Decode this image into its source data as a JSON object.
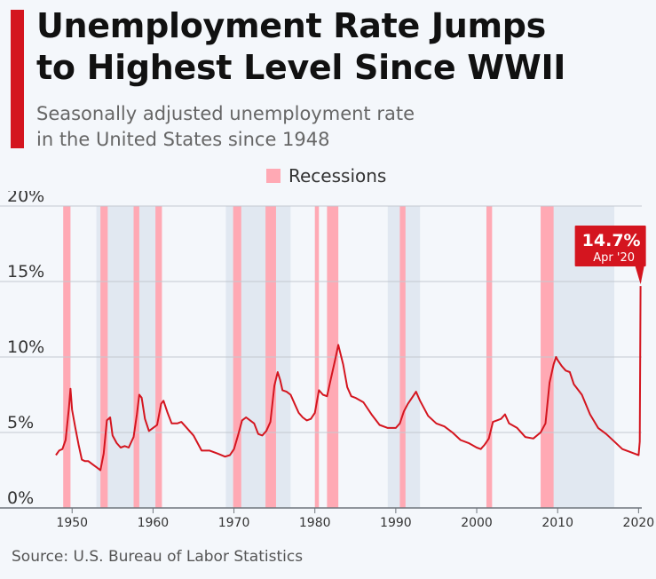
{
  "header": {
    "title_line1": "Unemployment Rate Jumps",
    "title_line2": "to Highest Level Since WWII",
    "subtitle_line1": "Seasonally adjusted unemployment rate",
    "subtitle_line2": "in the United States since 1948"
  },
  "legend": {
    "recessions_label": "Recessions"
  },
  "source": "Source: U.S. Bureau of Labor Statistics",
  "colors": {
    "accent": "#d4151f",
    "line": "#d4151f",
    "recession": "#ffa9b4",
    "presidency_band": "#e1e8f1",
    "background": "#f4f7fb",
    "grid": "#c4c9d0"
  },
  "chart_data": {
    "type": "line",
    "title": "Unemployment Rate Jumps to Highest Level Since WWII",
    "subtitle": "Seasonally adjusted unemployment rate in the United States since 1948",
    "ylim": [
      0,
      20
    ],
    "yticks": [
      0,
      5,
      10,
      15,
      20
    ],
    "ytick_labels": [
      "0%",
      "5%",
      "10%",
      "15%",
      "20%"
    ],
    "xlim": [
      1948,
      2020.4
    ],
    "xticks": [
      1950,
      1960,
      1970,
      1980,
      1990,
      2000,
      2010,
      2020
    ],
    "xtick_labels": [
      "1950",
      "1960",
      "1970",
      "1980",
      "1990",
      "2000",
      "2010",
      "2020"
    ],
    "grid": true,
    "legend_position": "top-center",
    "annotation": {
      "value": "14.7%",
      "date": "Apr '20",
      "x": 2020.25,
      "y": 14.7
    },
    "recessions": [
      [
        1948.9,
        1949.8
      ],
      [
        1953.5,
        1954.4
      ],
      [
        1957.6,
        1958.3
      ],
      [
        1960.3,
        1961.1
      ],
      [
        1969.9,
        1970.9
      ],
      [
        1973.9,
        1975.2
      ],
      [
        1980.0,
        1980.5
      ],
      [
        1981.5,
        1982.9
      ],
      [
        1990.5,
        1991.2
      ],
      [
        2001.2,
        2001.9
      ],
      [
        2007.9,
        2009.5
      ]
    ],
    "shaded_periods": [
      [
        1953.0,
        1961.0
      ],
      [
        1969.0,
        1977.0
      ],
      [
        1989.0,
        1993.0
      ],
      [
        2009.0,
        2017.0
      ]
    ],
    "series": [
      {
        "x": [
          1948.0,
          1948.4,
          1948.8,
          1949.2,
          1949.6,
          1949.8,
          1950.0,
          1950.4,
          1950.8,
          1951.2,
          1951.6,
          1952.0,
          1952.5,
          1953.0,
          1953.5,
          1953.9,
          1954.3,
          1954.7,
          1955.0,
          1955.5,
          1956.0,
          1956.5,
          1957.0,
          1957.6,
          1958.0,
          1958.3,
          1958.6,
          1959.0,
          1959.5,
          1960.0,
          1960.5,
          1961.0,
          1961.3,
          1961.8,
          1962.3,
          1963.0,
          1963.5,
          1964.0,
          1965.0,
          1966.0,
          1967.0,
          1968.0,
          1968.9,
          1969.5,
          1970.0,
          1970.5,
          1971.0,
          1971.5,
          1972.0,
          1972.5,
          1973.0,
          1973.5,
          1974.0,
          1974.5,
          1975.0,
          1975.4,
          1975.7,
          1976.0,
          1976.5,
          1977.0,
          1977.5,
          1978.0,
          1978.5,
          1979.0,
          1979.5,
          1980.0,
          1980.5,
          1981.0,
          1981.5,
          1982.0,
          1982.5,
          1982.9,
          1983.5,
          1984.0,
          1984.5,
          1985.0,
          1986.0,
          1987.0,
          1988.0,
          1989.0,
          1990.0,
          1990.5,
          1991.0,
          1991.5,
          1992.0,
          1992.5,
          1993.0,
          1994.0,
          1995.0,
          1996.0,
          1997.0,
          1998.0,
          1999.0,
          2000.0,
          2000.5,
          2001.0,
          2001.5,
          2002.0,
          2002.5,
          2003.0,
          2003.5,
          2004.0,
          2005.0,
          2006.0,
          2007.0,
          2007.9,
          2008.5,
          2009.0,
          2009.5,
          2009.8,
          2010.0,
          2010.5,
          2011.0,
          2011.5,
          2012.0,
          2013.0,
          2014.0,
          2015.0,
          2016.0,
          2017.0,
          2018.0,
          2019.0,
          2019.5,
          2020.0,
          2020.15,
          2020.25
        ],
        "values": [
          3.5,
          3.8,
          3.9,
          4.5,
          6.6,
          7.9,
          6.5,
          5.3,
          4.2,
          3.2,
          3.1,
          3.1,
          2.9,
          2.7,
          2.5,
          3.6,
          5.8,
          6.0,
          4.8,
          4.3,
          4.0,
          4.1,
          4.0,
          4.7,
          6.2,
          7.5,
          7.3,
          5.9,
          5.1,
          5.3,
          5.5,
          6.9,
          7.1,
          6.3,
          5.6,
          5.6,
          5.7,
          5.4,
          4.8,
          3.8,
          3.8,
          3.6,
          3.4,
          3.5,
          3.9,
          4.8,
          5.8,
          6.0,
          5.8,
          5.6,
          4.9,
          4.8,
          5.1,
          5.7,
          8.1,
          9.0,
          8.5,
          7.8,
          7.7,
          7.5,
          6.9,
          6.3,
          6.0,
          5.8,
          5.9,
          6.3,
          7.8,
          7.5,
          7.4,
          8.6,
          9.8,
          10.8,
          9.5,
          8.0,
          7.4,
          7.3,
          7.0,
          6.2,
          5.5,
          5.3,
          5.3,
          5.6,
          6.4,
          6.9,
          7.3,
          7.7,
          7.1,
          6.1,
          5.6,
          5.4,
          5.0,
          4.5,
          4.3,
          4.0,
          3.9,
          4.2,
          4.6,
          5.7,
          5.8,
          5.9,
          6.2,
          5.6,
          5.3,
          4.7,
          4.6,
          5.0,
          5.6,
          8.3,
          9.5,
          10.0,
          9.8,
          9.4,
          9.1,
          9.0,
          8.2,
          7.5,
          6.2,
          5.3,
          4.9,
          4.4,
          3.9,
          3.7,
          3.6,
          3.5,
          4.4,
          14.7
        ]
      }
    ]
  }
}
